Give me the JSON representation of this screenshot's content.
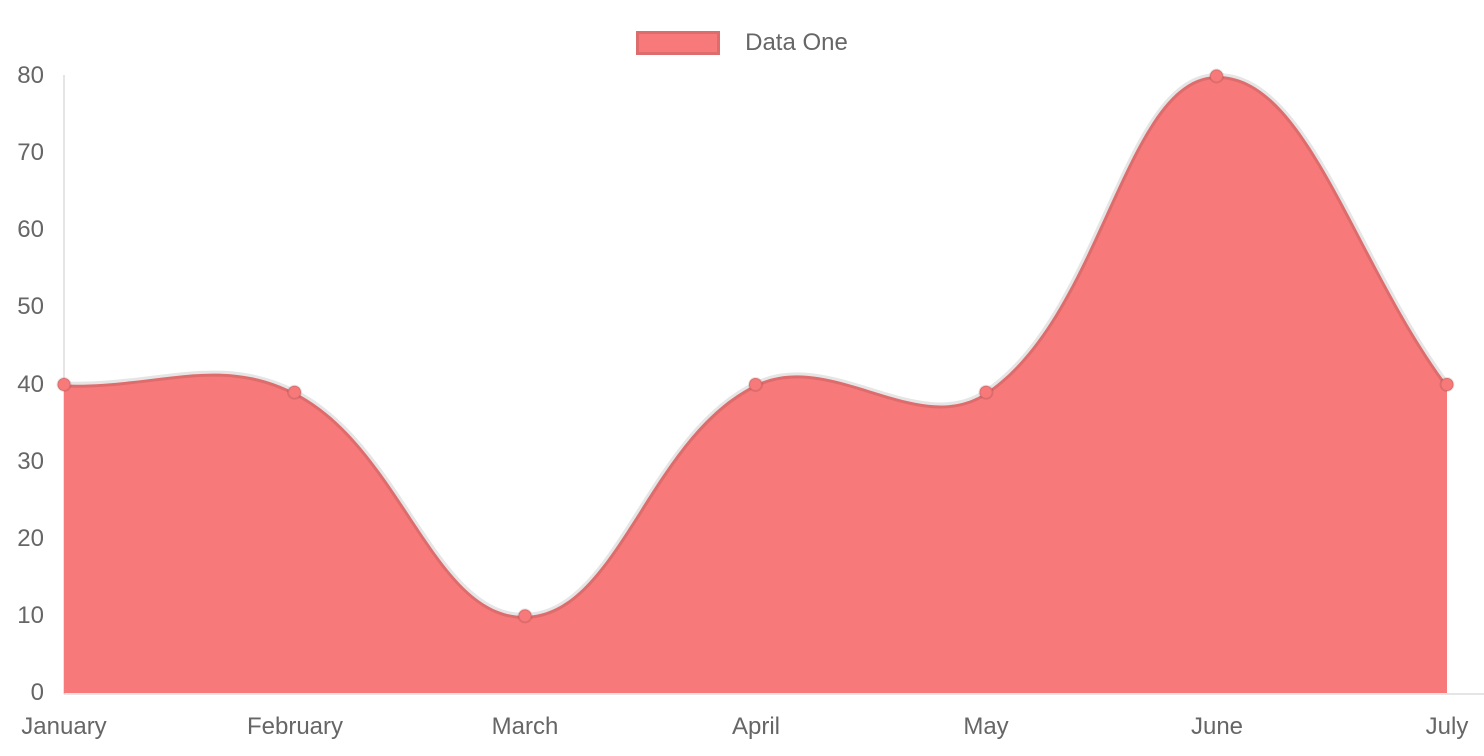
{
  "chart_data": {
    "type": "area",
    "title": "",
    "categories": [
      "January",
      "February",
      "March",
      "April",
      "May",
      "June",
      "July"
    ],
    "series": [
      {
        "name": "Data One",
        "values": [
          40,
          39,
          10,
          40,
          39,
          80,
          40
        ],
        "fill_color": "#f87979",
        "line_color": "rgba(0,0,0,0.10)",
        "point_color": "#f87979",
        "point_border_color": "rgba(0,0,0,0.10)"
      }
    ],
    "xlabel": "",
    "ylabel": "",
    "ylim": [
      0,
      80
    ],
    "yticks": [
      0,
      10,
      20,
      30,
      40,
      50,
      60,
      70,
      80
    ],
    "legend_position": "top",
    "grid": false,
    "line_tension": 0.4,
    "axis_color": "rgba(0,0,0,0.10)",
    "tick_text_color": "#666666",
    "background_color": "#ffffff"
  }
}
